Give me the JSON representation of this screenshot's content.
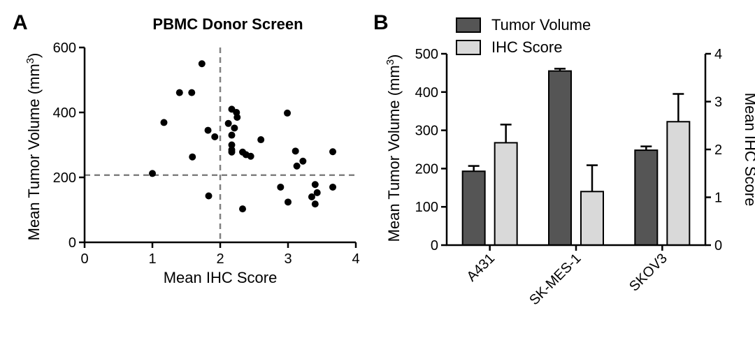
{
  "colors": {
    "dark_bar": "#555555",
    "light_bar": "#d9d9d9",
    "axis": "#000000",
    "dashed": "#808080",
    "point": "#000000"
  },
  "chart_data": [
    {
      "panel": "A",
      "type": "scatter",
      "title": "PBMC Donor Screen",
      "xlabel": "Mean IHC Score",
      "ylabel": "Mean Tumor Volume (mm",
      "ylabel_sup": "3",
      "ylabel_close": ")",
      "xlim": [
        0,
        4
      ],
      "ylim": [
        0,
        600
      ],
      "xticks": [
        "0",
        "1",
        "2",
        "3",
        "4"
      ],
      "xtick_values": [
        0,
        1,
        2,
        3,
        4
      ],
      "yticks": [
        "0",
        "200",
        "400",
        "600"
      ],
      "ytick_values": [
        0,
        200,
        400,
        600
      ],
      "reference_lines": {
        "x": 2,
        "y": 207
      },
      "points": [
        {
          "x": 1.0,
          "y": 212
        },
        {
          "x": 1.17,
          "y": 369
        },
        {
          "x": 1.4,
          "y": 461
        },
        {
          "x": 1.58,
          "y": 461
        },
        {
          "x": 1.59,
          "y": 263
        },
        {
          "x": 1.73,
          "y": 550
        },
        {
          "x": 1.82,
          "y": 345
        },
        {
          "x": 1.83,
          "y": 143
        },
        {
          "x": 1.92,
          "y": 325
        },
        {
          "x": 2.12,
          "y": 366
        },
        {
          "x": 2.17,
          "y": 410
        },
        {
          "x": 2.17,
          "y": 330
        },
        {
          "x": 2.17,
          "y": 300
        },
        {
          "x": 2.17,
          "y": 285
        },
        {
          "x": 2.17,
          "y": 278
        },
        {
          "x": 2.21,
          "y": 352
        },
        {
          "x": 2.24,
          "y": 400
        },
        {
          "x": 2.25,
          "y": 385
        },
        {
          "x": 2.33,
          "y": 278
        },
        {
          "x": 2.33,
          "y": 103
        },
        {
          "x": 2.38,
          "y": 270
        },
        {
          "x": 2.45,
          "y": 265
        },
        {
          "x": 2.6,
          "y": 316
        },
        {
          "x": 2.89,
          "y": 170
        },
        {
          "x": 2.99,
          "y": 398
        },
        {
          "x": 3.0,
          "y": 124
        },
        {
          "x": 3.11,
          "y": 281
        },
        {
          "x": 3.13,
          "y": 235
        },
        {
          "x": 3.22,
          "y": 250
        },
        {
          "x": 3.35,
          "y": 140
        },
        {
          "x": 3.4,
          "y": 178
        },
        {
          "x": 3.4,
          "y": 118
        },
        {
          "x": 3.43,
          "y": 153
        },
        {
          "x": 3.66,
          "y": 279
        },
        {
          "x": 3.66,
          "y": 170
        }
      ]
    },
    {
      "panel": "B",
      "type": "bar",
      "categories": [
        "A431",
        "SK-MES-1",
        "SKOV3"
      ],
      "ylabel_left": "Mean Tumor Volume (mm",
      "ylabel_left_sup": "3",
      "ylabel_left_close": ")",
      "ylabel_right": "Mean IHC Score",
      "ylim_left": [
        0,
        500
      ],
      "ylim_right": [
        0,
        4
      ],
      "yticks_left": [
        "0",
        "100",
        "200",
        "300",
        "400",
        "500"
      ],
      "ytick_values_left": [
        0,
        100,
        200,
        300,
        400,
        500
      ],
      "yticks_right": [
        "0",
        "1",
        "2",
        "3",
        "4"
      ],
      "ytick_values_right": [
        0,
        1,
        2,
        3,
        4
      ],
      "series": [
        {
          "name": "Tumor Volume",
          "axis": "left",
          "values": [
            193,
            455,
            248
          ],
          "errors": [
            14,
            6,
            10
          ]
        },
        {
          "name": "IHC Score",
          "axis": "right",
          "values": [
            2.14,
            1.12,
            2.58
          ],
          "errors": [
            0.38,
            0.55,
            0.58
          ]
        }
      ]
    }
  ]
}
